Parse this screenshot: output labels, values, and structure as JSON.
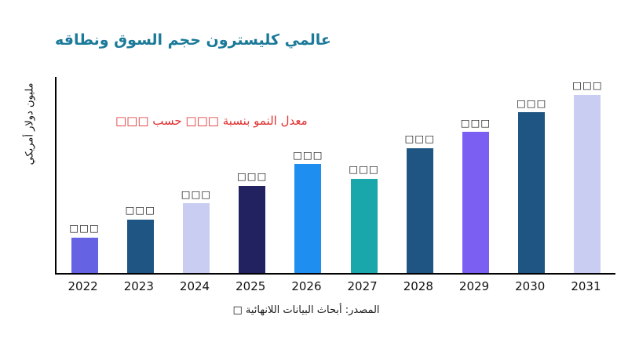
{
  "title": "عالمي كليسترون حجم السوق ونطاقه",
  "annotation": "معدل النمو بنسبة □□□ حسب □□□",
  "source": "المصدر: أبحاث البيانات اللانهائية □",
  "colors": {
    "title_text": "#1b7a99",
    "annotation_text": "#e03131",
    "axis": "#000000",
    "label_text": "#111111"
  },
  "chart_data": {
    "type": "bar",
    "title": "عالمي كليسترون حجم السوق ونطاقه",
    "ylabel": "مليون دولار أمريكي",
    "xlabel": "",
    "categories": [
      "2022",
      "2023",
      "2024",
      "2025",
      "2026",
      "2027",
      "2028",
      "2029",
      "2030",
      "2031"
    ],
    "values": [
      20,
      30,
      39,
      49,
      61,
      53,
      70,
      79,
      90,
      100
    ],
    "value_labels": [
      "□□□",
      "□□□",
      "□□□",
      "□□□",
      "□□□",
      "□□□",
      "□□□",
      "□□□",
      "□□□",
      "□□□"
    ],
    "bar_colors": [
      "#6562e3",
      "#1f5582",
      "#c8cdf1",
      "#222260",
      "#1e8ef0",
      "#1aa7ac",
      "#1f5582",
      "#7b5ef2",
      "#1f5582",
      "#c8cdf1"
    ],
    "ylim": [
      0,
      110
    ],
    "grid": false,
    "legend_position": "none",
    "annotation": "معدل النمو بنسبة □□□ حسب □□□"
  }
}
